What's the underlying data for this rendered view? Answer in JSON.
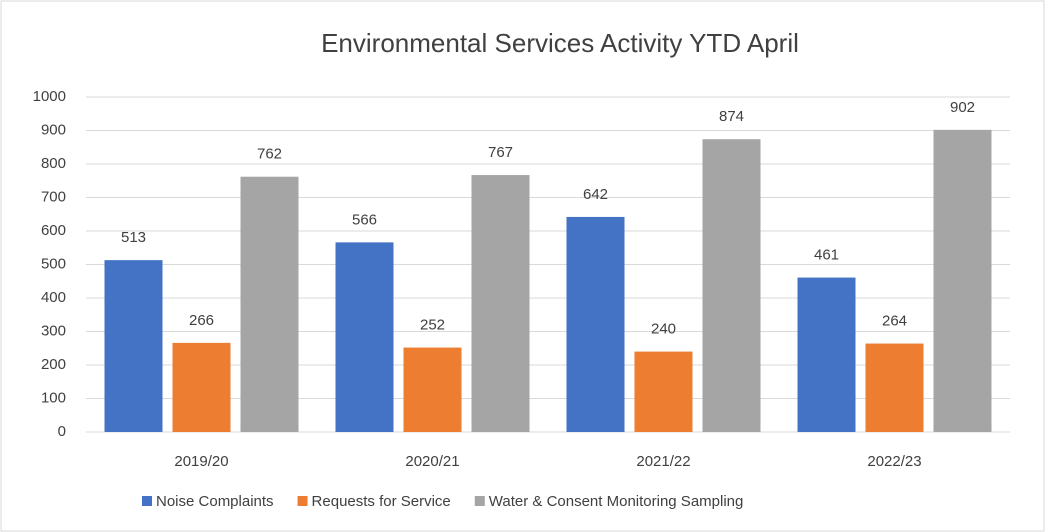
{
  "chart_data": {
    "type": "bar",
    "title": "Environmental Services Activity YTD April",
    "categories": [
      "2019/20",
      "2020/21",
      "2021/22",
      "2022/23"
    ],
    "series": [
      {
        "name": "Noise Complaints",
        "color": "#4472c4",
        "values": [
          513,
          566,
          642,
          461
        ]
      },
      {
        "name": "Requests for Service",
        "color": "#ed7d31",
        "values": [
          266,
          252,
          240,
          264
        ]
      },
      {
        "name": "Water & Consent Monitoring Sampling",
        "color": "#a5a5a5",
        "values": [
          762,
          767,
          874,
          902
        ]
      }
    ],
    "ylim": [
      0,
      1000
    ],
    "yticks": [
      0,
      100,
      200,
      300,
      400,
      500,
      600,
      700,
      800,
      900,
      1000
    ],
    "grid": true,
    "legend": "bottom"
  }
}
